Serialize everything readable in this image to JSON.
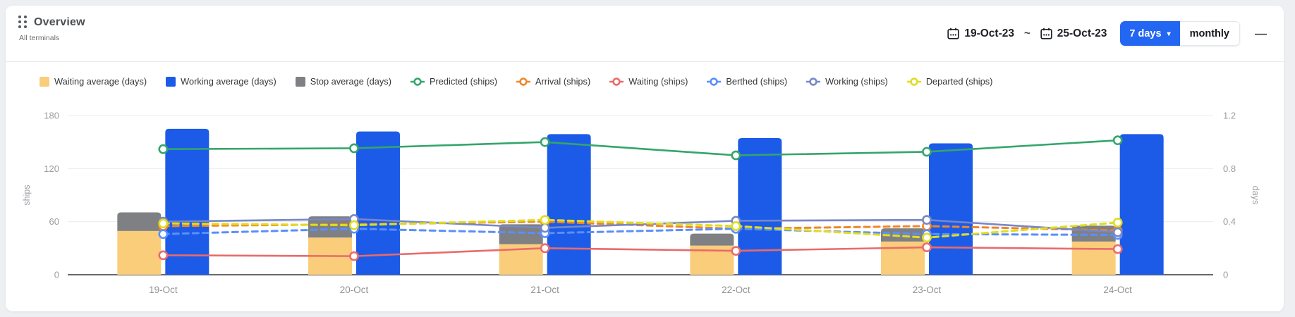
{
  "header": {
    "title": "Overview",
    "subtitle": "All terminals",
    "date_from": "19-Oct-23",
    "date_separator": "~",
    "date_to": "25-Oct-23",
    "range_button_label": "7 days",
    "range_button_caret": "▾",
    "monthly_button_label": "monthly",
    "minimize_label": "—"
  },
  "colors": {
    "waiting_avg_bar": "#FACD7B",
    "working_avg_bar": "#1C5BE8",
    "stop_avg_bar": "#7F8083",
    "predicted_line": "#34A56C",
    "arrival_line": "#F0862B",
    "waiting_line": "#E96B6B",
    "berthed_line": "#5B8FF9",
    "working_line": "#7887C7",
    "departed_line": "#DFDD21",
    "accent_blue": "#2266F2"
  },
  "legend": [
    {
      "label": "Waiting average (days)",
      "type": "square",
      "color": "#FACD7B"
    },
    {
      "label": "Working average (days)",
      "type": "square",
      "color": "#1C5BE8"
    },
    {
      "label": "Stop average (days)",
      "type": "square",
      "color": "#7F8083"
    },
    {
      "label": "Predicted (ships)",
      "type": "line",
      "color": "#34A56C"
    },
    {
      "label": "Arrival (ships)",
      "type": "line",
      "color": "#F0862B"
    },
    {
      "label": "Waiting (ships)",
      "type": "line",
      "color": "#E96B6B"
    },
    {
      "label": "Berthed (ships)",
      "type": "line",
      "color": "#5B8FF9"
    },
    {
      "label": "Working (ships)",
      "type": "line",
      "color": "#7887C7"
    },
    {
      "label": "Departed (ships)",
      "type": "line",
      "color": "#DFDD21"
    }
  ],
  "chart_data": {
    "type": "bar+line combo (dual axis)",
    "categories": [
      "19-Oct",
      "20-Oct",
      "21-Oct",
      "22-Oct",
      "23-Oct",
      "24-Oct"
    ],
    "bar_series": [
      {
        "name": "Waiting average (days)",
        "axis": "days",
        "color": "#FACD7B",
        "stack": "avg",
        "values": [
          0.33,
          0.28,
          0.23,
          0.22,
          0.25,
          0.25
        ]
      },
      {
        "name": "Stop average (days)",
        "axis": "days",
        "color": "#7F8083",
        "stack": "avg",
        "values": [
          0.14,
          0.16,
          0.15,
          0.09,
          0.1,
          0.12
        ]
      },
      {
        "name": "Working average (days)",
        "axis": "days",
        "color": "#1C5BE8",
        "stack": null,
        "values": [
          1.1,
          1.08,
          1.06,
          1.03,
          0.99,
          1.06
        ]
      }
    ],
    "line_series": [
      {
        "name": "Predicted (ships)",
        "axis": "ships",
        "color": "#34A56C",
        "dashed": false,
        "values": [
          142,
          143,
          150,
          135,
          139,
          152
        ]
      },
      {
        "name": "Arrival (ships)",
        "axis": "ships",
        "color": "#F0862B",
        "dashed": true,
        "values": [
          55,
          57,
          60,
          52,
          55,
          50
        ]
      },
      {
        "name": "Waiting (ships)",
        "axis": "ships",
        "color": "#E96B6B",
        "dashed": false,
        "values": [
          22,
          21,
          30,
          27,
          31,
          29
        ]
      },
      {
        "name": "Berthed (ships)",
        "axis": "ships",
        "color": "#5B8FF9",
        "dashed": true,
        "values": [
          46,
          52,
          47,
          52,
          46,
          45
        ]
      },
      {
        "name": "Working (ships)",
        "axis": "ships",
        "color": "#7887C7",
        "dashed": false,
        "values": [
          60,
          63,
          53,
          61,
          62,
          48
        ]
      },
      {
        "name": "Departed (ships)",
        "axis": "ships",
        "color": "#DFDD21",
        "dashed": true,
        "values": [
          58,
          56,
          62,
          55,
          42,
          59
        ]
      }
    ],
    "left_axis": {
      "label": "ships",
      "ticks": [
        0,
        60,
        120,
        180
      ],
      "min": 0,
      "max": 180
    },
    "right_axis": {
      "label": "days",
      "ticks": [
        0,
        0.4,
        0.8,
        1.2
      ],
      "min": 0,
      "max": 1.2
    },
    "grid": true,
    "legend_position": "top"
  }
}
